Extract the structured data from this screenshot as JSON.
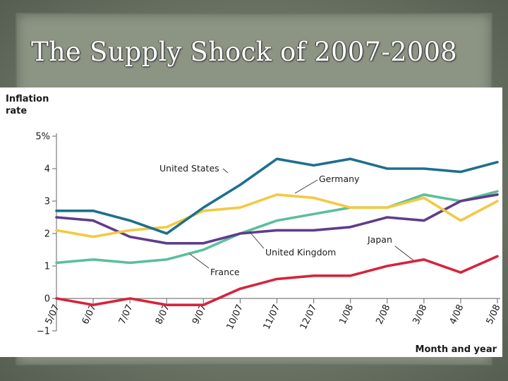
{
  "slide": {
    "title": "The Supply Shock of 2007-2008"
  },
  "chart_data": {
    "type": "line",
    "ylabel_line1": "Inflation",
    "ylabel_line2": "rate",
    "xlabel": "Month and year",
    "ylim": [
      -1,
      5
    ],
    "yticks": [
      {
        "value": 5,
        "label": "5%"
      },
      {
        "value": 4,
        "label": "4"
      },
      {
        "value": 3,
        "label": "3"
      },
      {
        "value": 2,
        "label": "2"
      },
      {
        "value": 1,
        "label": "1"
      },
      {
        "value": 0,
        "label": "0"
      },
      {
        "value": -1,
        "label": "−1"
      }
    ],
    "categories": [
      "5/07",
      "6/07",
      "7/07",
      "8/07",
      "9/07",
      "10/07",
      "11/07",
      "12/07",
      "1/08",
      "2/08",
      "3/08",
      "4/08",
      "5/08"
    ],
    "grid": false,
    "series": [
      {
        "name": "United States",
        "color": "#1e6f8e",
        "values": [
          2.7,
          2.7,
          2.4,
          2.0,
          2.8,
          3.5,
          4.3,
          4.1,
          4.3,
          4.0,
          4.0,
          3.9,
          4.2
        ]
      },
      {
        "name": "Germany",
        "color": "#f4c842",
        "values": [
          2.1,
          1.9,
          2.1,
          2.2,
          2.7,
          2.8,
          3.2,
          3.1,
          2.8,
          2.8,
          3.1,
          2.4,
          3.0
        ]
      },
      {
        "name": "United Kingdom",
        "color": "#5f3c8e",
        "values": [
          2.5,
          2.4,
          1.9,
          1.7,
          1.7,
          2.0,
          2.1,
          2.1,
          2.2,
          2.5,
          2.4,
          3.0,
          3.2
        ]
      },
      {
        "name": "France",
        "color": "#5cbf9a",
        "values": [
          1.1,
          1.2,
          1.1,
          1.2,
          1.5,
          2.0,
          2.4,
          2.6,
          2.8,
          2.8,
          3.2,
          3.0,
          3.3
        ]
      },
      {
        "name": "Japan",
        "color": "#d6243c",
        "values": [
          0.0,
          -0.2,
          0.0,
          -0.2,
          -0.2,
          0.3,
          0.6,
          0.7,
          0.7,
          1.0,
          1.2,
          0.8,
          1.3
        ]
      }
    ],
    "annotations": [
      {
        "text": "United States",
        "series": "United States"
      },
      {
        "text": "Germany",
        "series": "Germany"
      },
      {
        "text": "United Kingdom",
        "series": "United Kingdom"
      },
      {
        "text": "France",
        "series": "France"
      },
      {
        "text": "Japan",
        "series": "Japan"
      }
    ]
  }
}
